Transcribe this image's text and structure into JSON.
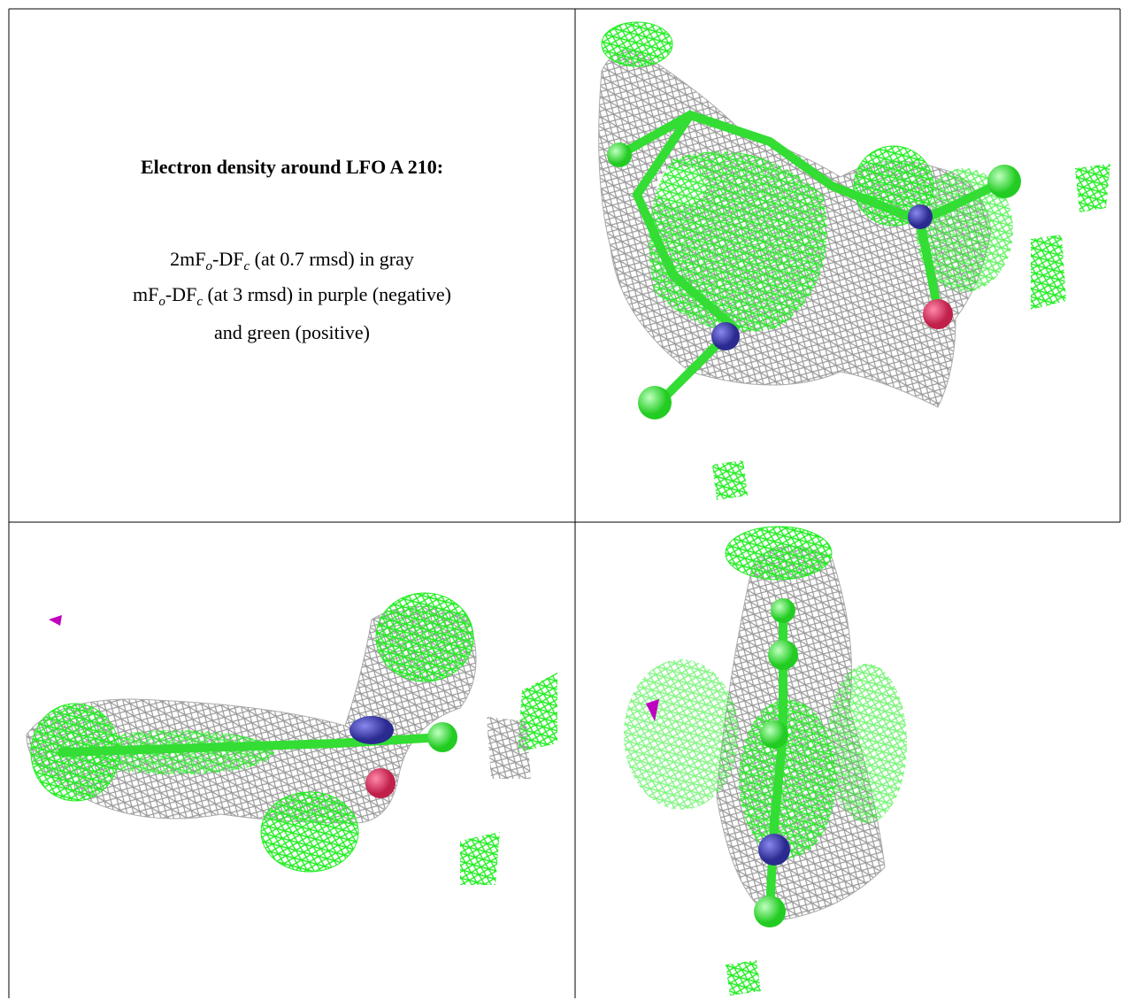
{
  "caption": {
    "title": "Electron density around LFO A 210:",
    "lines": [
      [
        "2mF",
        "o",
        "-DF",
        "c",
        " (at 0.7 rmsd) in gray"
      ],
      [
        "mF",
        "o",
        "-DF",
        "c",
        " (at 3 rmsd) in purple (negative)"
      ],
      [
        "and green (positive)"
      ]
    ]
  }
}
